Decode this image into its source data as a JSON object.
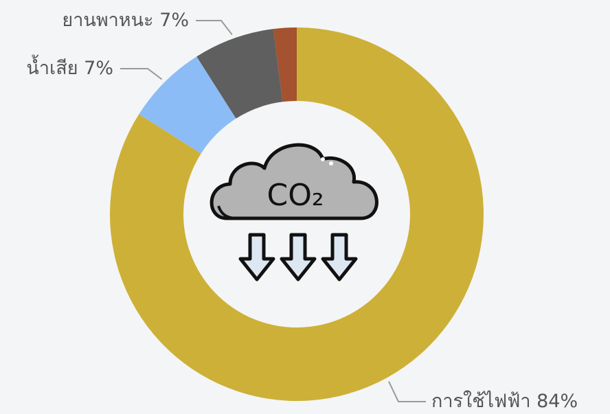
{
  "chart_data": {
    "type": "donut",
    "categories": [
      "การใช้ไฟฟ้า",
      "น้ำเสีย",
      "ยานพาหนะ",
      null
    ],
    "values": [
      84,
      7,
      7,
      2
    ],
    "value_labels": [
      "84%",
      "7%",
      "7%",
      null
    ],
    "colors": [
      "#cdb038",
      "#8cbcf6",
      "#5f5f5f",
      "#a4522f"
    ],
    "center_label": "CO₂"
  }
}
